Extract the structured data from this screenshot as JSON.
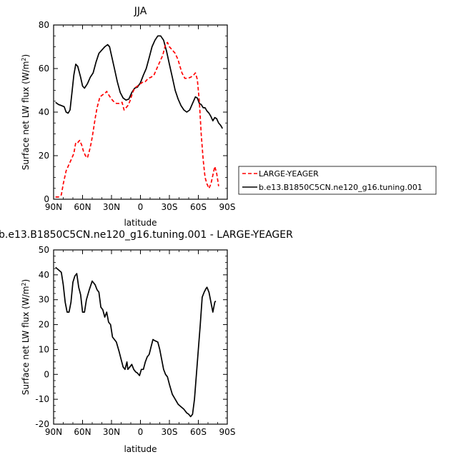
{
  "chart_data": [
    {
      "type": "line",
      "title": "JJA",
      "xlabel": "latitude",
      "ylabel": "Surface net LW flux (W/m",
      "ylabel_sup": "2",
      "ylabel_end": ")",
      "x_ticks": [
        {
          "v": -90,
          "label": "90N"
        },
        {
          "v": -60,
          "label": "60N"
        },
        {
          "v": -30,
          "label": "30N"
        },
        {
          "v": 0,
          "label": "0"
        },
        {
          "v": 30,
          "label": "30S"
        },
        {
          "v": 60,
          "label": "60S"
        },
        {
          "v": 90,
          "label": "90S"
        }
      ],
      "y_ticks": [
        0,
        20,
        40,
        60,
        80
      ],
      "xlim": [
        -90,
        90
      ],
      "ylim": [
        0,
        80
      ],
      "legend_position": "right",
      "series": [
        {
          "name": "b.e13.B1850C5CN.ne120_g16.tuning.001",
          "color": "#000000",
          "dash": "solid",
          "points": [
            [
              -88,
              44.5
            ],
            [
              -85,
              43.5
            ],
            [
              -82,
              43
            ],
            [
              -79,
              42.5
            ],
            [
              -77,
              40
            ],
            [
              -75,
              39.5
            ],
            [
              -73,
              41
            ],
            [
              -71,
              49
            ],
            [
              -69,
              57
            ],
            [
              -67,
              62
            ],
            [
              -65,
              61
            ],
            [
              -62,
              56
            ],
            [
              -60,
              52
            ],
            [
              -58,
              51
            ],
            [
              -55,
              53
            ],
            [
              -52,
              56
            ],
            [
              -49,
              58
            ],
            [
              -46,
              63
            ],
            [
              -43,
              67
            ],
            [
              -40,
              68.5
            ],
            [
              -37,
              70
            ],
            [
              -34,
              71
            ],
            [
              -32,
              70
            ],
            [
              -30,
              66
            ],
            [
              -27,
              60
            ],
            [
              -24,
              54
            ],
            [
              -21,
              49
            ],
            [
              -18,
              46.5
            ],
            [
              -15,
              45.5
            ],
            [
              -12,
              46
            ],
            [
              -9,
              49
            ],
            [
              -6,
              51
            ],
            [
              -3,
              51.5
            ],
            [
              0,
              53.5
            ],
            [
              3,
              57
            ],
            [
              6,
              60
            ],
            [
              9,
              65
            ],
            [
              12,
              70
            ],
            [
              15,
              73
            ],
            [
              18,
              75
            ],
            [
              21,
              75
            ],
            [
              24,
              73
            ],
            [
              27,
              68
            ],
            [
              30,
              62
            ],
            [
              33,
              56
            ],
            [
              36,
              50
            ],
            [
              39,
              46
            ],
            [
              42,
              43
            ],
            [
              45,
              41
            ],
            [
              48,
              40
            ],
            [
              51,
              41
            ],
            [
              54,
              44
            ],
            [
              57,
              47
            ],
            [
              59,
              46.5
            ],
            [
              61,
              44
            ],
            [
              63,
              43.5
            ],
            [
              65,
              42
            ],
            [
              67,
              42
            ],
            [
              69,
              40.5
            ],
            [
              71,
              39.5
            ],
            [
              73,
              38
            ],
            [
              75,
              36
            ],
            [
              77,
              37.5
            ],
            [
              79,
              37
            ],
            [
              81,
              35
            ],
            [
              83,
              34
            ],
            [
              85,
              32.5
            ]
          ]
        },
        {
          "name": "LARGE-YEAGER",
          "color": "#ff0000",
          "dash": "dashed",
          "points": [
            [
              -88,
              1
            ],
            [
              -85,
              1
            ],
            [
              -82,
              2
            ],
            [
              -80,
              7
            ],
            [
              -77,
              13
            ],
            [
              -74,
              16
            ],
            [
              -71,
              19
            ],
            [
              -69,
              21
            ],
            [
              -67,
              26
            ],
            [
              -65,
              26
            ],
            [
              -63,
              27
            ],
            [
              -61,
              25
            ],
            [
              -59,
              22
            ],
            [
              -57,
              20
            ],
            [
              -55,
              19
            ],
            [
              -53,
              22
            ],
            [
              -51,
              26
            ],
            [
              -49,
              31
            ],
            [
              -47,
              37
            ],
            [
              -45,
              42
            ],
            [
              -42,
              47
            ],
            [
              -39,
              48
            ],
            [
              -37,
              48.5
            ],
            [
              -35,
              49.5
            ],
            [
              -33,
              48
            ],
            [
              -30,
              46
            ],
            [
              -28,
              45
            ],
            [
              -25,
              44
            ],
            [
              -22,
              44
            ],
            [
              -19,
              44.5
            ],
            [
              -17,
              41
            ],
            [
              -15,
              42
            ],
            [
              -13,
              43
            ],
            [
              -11,
              45
            ],
            [
              -8,
              49
            ],
            [
              -6,
              51
            ],
            [
              -3,
              52
            ],
            [
              0,
              53
            ],
            [
              3,
              54
            ],
            [
              5,
              54
            ],
            [
              8,
              55.5
            ],
            [
              11,
              56
            ],
            [
              14,
              57
            ],
            [
              17,
              60
            ],
            [
              20,
              63
            ],
            [
              23,
              66
            ],
            [
              26,
              71
            ],
            [
              28,
              72
            ],
            [
              30,
              70
            ],
            [
              33,
              68.5
            ],
            [
              36,
              67
            ],
            [
              39,
              64
            ],
            [
              41,
              61
            ],
            [
              43,
              58
            ],
            [
              46,
              55.5
            ],
            [
              49,
              55.5
            ],
            [
              52,
              56
            ],
            [
              55,
              57
            ],
            [
              57,
              58
            ],
            [
              59,
              55
            ],
            [
              61,
              45
            ],
            [
              63,
              30
            ],
            [
              65,
              18
            ],
            [
              67,
              10
            ],
            [
              69,
              7
            ],
            [
              71,
              5
            ],
            [
              73,
              7
            ],
            [
              75,
              11
            ],
            [
              77,
              15
            ],
            [
              79,
              12
            ],
            [
              81,
              6
            ]
          ]
        }
      ]
    },
    {
      "type": "line",
      "title": "b.e13.B1850C5CN.ne120_g16.tuning.001 - LARGE-YEAGER",
      "xlabel": "latitude",
      "ylabel": "Surface net LW flux (W/m",
      "ylabel_sup": "2",
      "ylabel_end": ")",
      "x_ticks": [
        {
          "v": -90,
          "label": "90N"
        },
        {
          "v": -60,
          "label": "60N"
        },
        {
          "v": -30,
          "label": "30N"
        },
        {
          "v": 0,
          "label": "0"
        },
        {
          "v": 30,
          "label": "30S"
        },
        {
          "v": 60,
          "label": "60S"
        },
        {
          "v": 90,
          "label": "90S"
        }
      ],
      "y_ticks": [
        -20,
        -10,
        0,
        10,
        20,
        30,
        40,
        50
      ],
      "xlim": [
        -90,
        90
      ],
      "ylim": [
        -20,
        50
      ],
      "series": [
        {
          "color": "#000000",
          "dash": "solid",
          "points": [
            [
              -88,
              43
            ],
            [
              -85,
              42
            ],
            [
              -82,
              41
            ],
            [
              -80,
              36
            ],
            [
              -78,
              29
            ],
            [
              -76,
              25
            ],
            [
              -74,
              25
            ],
            [
              -72,
              29
            ],
            [
              -70,
              37
            ],
            [
              -68,
              39.5
            ],
            [
              -66,
              40.5
            ],
            [
              -64,
              35
            ],
            [
              -62,
              32
            ],
            [
              -60,
              25
            ],
            [
              -58,
              25
            ],
            [
              -56,
              30
            ],
            [
              -53,
              34
            ],
            [
              -50,
              37.5
            ],
            [
              -47,
              36
            ],
            [
              -45,
              34
            ],
            [
              -43,
              33
            ],
            [
              -41,
              27
            ],
            [
              -39,
              26
            ],
            [
              -37,
              23
            ],
            [
              -35,
              25
            ],
            [
              -33,
              21
            ],
            [
              -31,
              20
            ],
            [
              -29,
              15
            ],
            [
              -27,
              14
            ],
            [
              -25,
              13
            ],
            [
              -22,
              9
            ],
            [
              -20,
              6
            ],
            [
              -18,
              3
            ],
            [
              -16,
              2
            ],
            [
              -14,
              5
            ],
            [
              -13,
              2
            ],
            [
              -11,
              3
            ],
            [
              -9,
              4
            ],
            [
              -7,
              2
            ],
            [
              -5,
              1
            ],
            [
              -3,
              0.5
            ],
            [
              -1,
              -0.5
            ],
            [
              1,
              2
            ],
            [
              3,
              2
            ],
            [
              5,
              5
            ],
            [
              7,
              7
            ],
            [
              9,
              8
            ],
            [
              11,
              11
            ],
            [
              13,
              14
            ],
            [
              15,
              13.5
            ],
            [
              18,
              13
            ],
            [
              20,
              10
            ],
            [
              22,
              6
            ],
            [
              24,
              2
            ],
            [
              26,
              0
            ],
            [
              28,
              -1
            ],
            [
              30,
              -4
            ],
            [
              33,
              -8
            ],
            [
              36,
              -10
            ],
            [
              39,
              -12
            ],
            [
              42,
              -13
            ],
            [
              45,
              -14
            ],
            [
              48,
              -15.5
            ],
            [
              50,
              -16
            ],
            [
              52,
              -17
            ],
            [
              54,
              -16
            ],
            [
              56,
              -10
            ],
            [
              58,
              0
            ],
            [
              60,
              10
            ],
            [
              62,
              20
            ],
            [
              64,
              31
            ],
            [
              66,
              33
            ],
            [
              68,
              34.5
            ],
            [
              69,
              35
            ],
            [
              71,
              33
            ],
            [
              73,
              29
            ],
            [
              75,
              25
            ],
            [
              77,
              29
            ],
            [
              78,
              29.5
            ]
          ]
        }
      ]
    }
  ]
}
